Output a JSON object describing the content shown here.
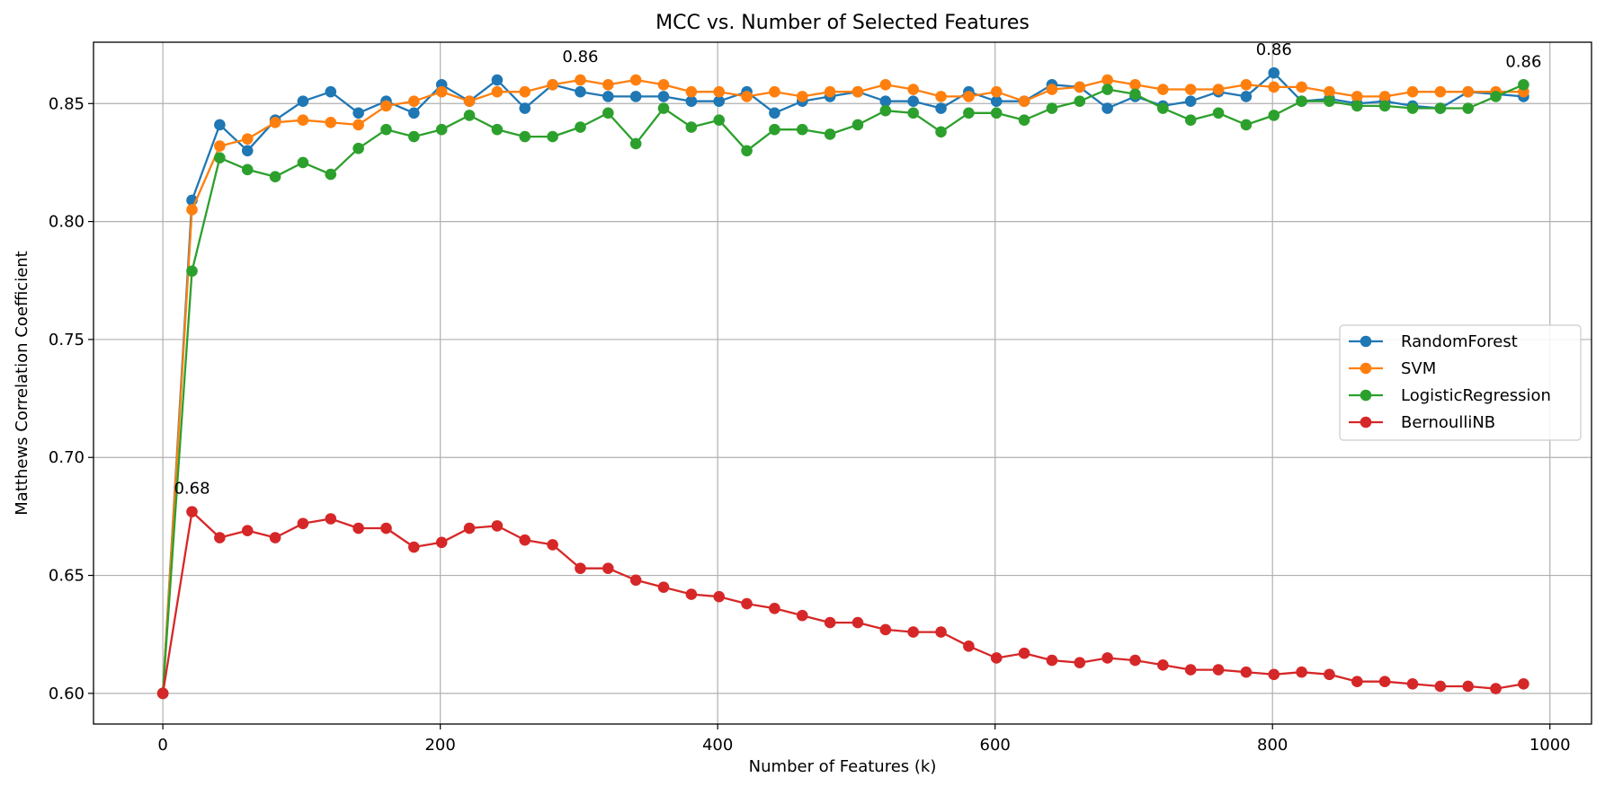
{
  "chart_data": {
    "type": "line",
    "title": "MCC vs. Number of Selected Features",
    "xlabel": "Number of Features (k)",
    "ylabel": "Matthews Correlation Coefficient",
    "xlim": [
      -50,
      1030
    ],
    "ylim": [
      0.587,
      0.876
    ],
    "grid": true,
    "legend_position": "center-right",
    "xticks": [
      0,
      200,
      400,
      600,
      800,
      1000
    ],
    "xtick_labels": [
      "0",
      "200",
      "400",
      "600",
      "800",
      "1000"
    ],
    "yticks": [
      0.6,
      0.65,
      0.7,
      0.75,
      0.8,
      0.85
    ],
    "ytick_labels": [
      "0.60",
      "0.65",
      "0.70",
      "0.75",
      "0.80",
      "0.85"
    ],
    "x": [
      0,
      21,
      41,
      61,
      81,
      101,
      121,
      141,
      161,
      181,
      201,
      221,
      241,
      261,
      281,
      301,
      321,
      341,
      361,
      381,
      401,
      421,
      441,
      461,
      481,
      501,
      521,
      541,
      561,
      581,
      601,
      621,
      641,
      661,
      681,
      701,
      721,
      741,
      761,
      781,
      801,
      821,
      841,
      861,
      881,
      901,
      921,
      941,
      961,
      981
    ],
    "series": [
      {
        "name": "RandomForest",
        "color": "#1f77b4",
        "values": [
          0.6,
          0.809,
          0.841,
          0.83,
          0.843,
          0.851,
          0.855,
          0.846,
          0.851,
          0.846,
          0.858,
          0.851,
          0.86,
          0.848,
          0.858,
          0.855,
          0.853,
          0.853,
          0.853,
          0.851,
          0.851,
          0.855,
          0.846,
          0.851,
          0.853,
          0.855,
          0.851,
          0.851,
          0.848,
          0.855,
          0.851,
          0.851,
          0.858,
          0.857,
          0.848,
          0.853,
          0.849,
          0.851,
          0.855,
          0.853,
          0.863,
          0.851,
          0.852,
          0.85,
          0.851,
          0.849,
          0.848,
          0.855,
          0.854,
          0.853
        ]
      },
      {
        "name": "SVM",
        "color": "#ff7f0e",
        "values": [
          0.6,
          0.805,
          0.832,
          0.835,
          0.842,
          0.843,
          0.842,
          0.841,
          0.849,
          0.851,
          0.855,
          0.851,
          0.855,
          0.855,
          0.858,
          0.86,
          0.858,
          0.86,
          0.858,
          0.855,
          0.855,
          0.853,
          0.855,
          0.853,
          0.855,
          0.855,
          0.858,
          0.856,
          0.853,
          0.853,
          0.855,
          0.851,
          0.856,
          0.857,
          0.86,
          0.858,
          0.856,
          0.856,
          0.856,
          0.858,
          0.857,
          0.857,
          0.855,
          0.853,
          0.853,
          0.855,
          0.855,
          0.855,
          0.855,
          0.855
        ]
      },
      {
        "name": "LogisticRegression",
        "color": "#2ca02c",
        "values": [
          0.6,
          0.779,
          0.827,
          0.822,
          0.819,
          0.825,
          0.82,
          0.831,
          0.839,
          0.836,
          0.839,
          0.845,
          0.839,
          0.836,
          0.836,
          0.84,
          0.846,
          0.833,
          0.848,
          0.84,
          0.843,
          0.83,
          0.839,
          0.839,
          0.837,
          0.841,
          0.847,
          0.846,
          0.838,
          0.846,
          0.846,
          0.843,
          0.848,
          0.851,
          0.856,
          0.854,
          0.848,
          0.843,
          0.846,
          0.841,
          0.845,
          0.851,
          0.851,
          0.849,
          0.849,
          0.848,
          0.848,
          0.848,
          0.853,
          0.858
        ]
      },
      {
        "name": "BernoulliNB",
        "color": "#d62728",
        "values": [
          0.6,
          0.677,
          0.666,
          0.669,
          0.666,
          0.672,
          0.674,
          0.67,
          0.67,
          0.662,
          0.664,
          0.67,
          0.671,
          0.665,
          0.663,
          0.653,
          0.653,
          0.648,
          0.645,
          0.642,
          0.641,
          0.638,
          0.636,
          0.633,
          0.63,
          0.63,
          0.627,
          0.626,
          0.626,
          0.62,
          0.615,
          0.617,
          0.614,
          0.613,
          0.615,
          0.614,
          0.612,
          0.61,
          0.61,
          0.609,
          0.608,
          0.609,
          0.608,
          0.605,
          0.605,
          0.604,
          0.603,
          0.603,
          0.602,
          0.604
        ]
      }
    ],
    "annotations": [
      {
        "text": "0.86",
        "x": 301,
        "y": 0.86
      },
      {
        "text": "0.86",
        "x": 801,
        "y": 0.863
      },
      {
        "text": "0.86",
        "x": 981,
        "y": 0.858
      },
      {
        "text": "0.68",
        "x": 21,
        "y": 0.677
      }
    ]
  }
}
